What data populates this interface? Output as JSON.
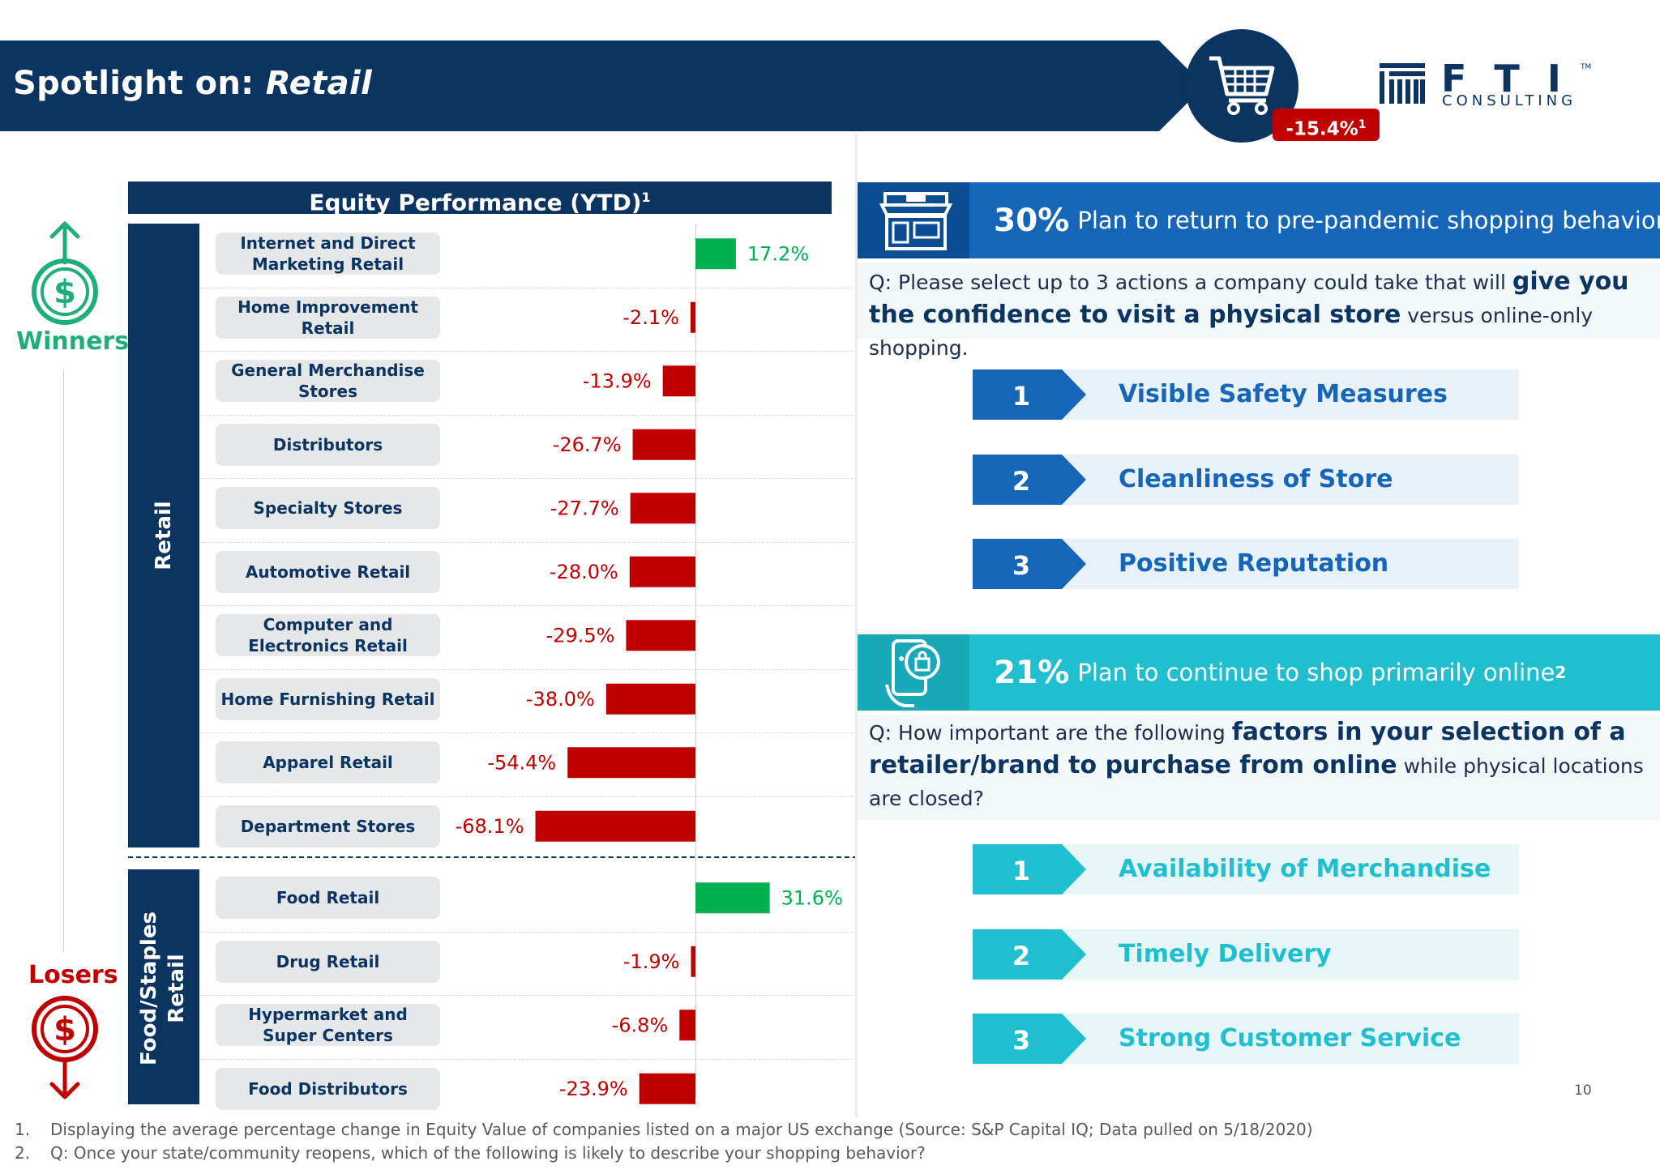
{
  "header": {
    "title_prefix": "Spotlight on: ",
    "title_emph": "Retail",
    "retail_badge": "-15.4%",
    "retail_badge_note": "1"
  },
  "logo": {
    "letters": "FTI",
    "sub": "CONSULTING",
    "tm": "TM"
  },
  "side": {
    "winners": "Winners",
    "losers": "Losers"
  },
  "chart_data": {
    "type": "bar",
    "orientation": "horizontal",
    "title": "Equity Performance (YTD)",
    "title_note": "1",
    "groups": [
      {
        "name": "Retail",
        "categories": [
          "Internet and Direct Marketing Retail",
          "Home Improvement Retail",
          "General Merchandise Stores",
          "Distributors",
          "Specialty Stores",
          "Automotive Retail",
          "Computer and Electronics Retail",
          "Home Furnishing Retail",
          "Apparel Retail",
          "Department Stores"
        ],
        "values": [
          17.2,
          -2.1,
          -13.9,
          -26.7,
          -27.7,
          -28.0,
          -29.5,
          -38.0,
          -54.4,
          -68.1
        ],
        "labels": [
          "17.2%",
          "-2.1%",
          "-13.9%",
          "-26.7%",
          "-27.7%",
          "-28.0%",
          "-29.5%",
          "-38.0%",
          "-54.4%",
          "-68.1%"
        ]
      },
      {
        "name": "Food/Staples Retail",
        "categories": [
          "Food Retail",
          "Drug Retail",
          "Hypermarket and Super Centers",
          "Food Distributors"
        ],
        "values": [
          31.6,
          -1.9,
          -6.8,
          -23.9
        ],
        "labels": [
          "31.6%",
          "-1.9%",
          "-6.8%",
          "-23.9%"
        ]
      }
    ],
    "positive_color": "#00b050",
    "negative_color": "#c00000"
  },
  "panel1": {
    "pct": "30%",
    "text": "Plan to return to pre-pandemic shopping behavior",
    "note": "2",
    "q_pre": "Q: Please select up to 3 actions a company could take that will ",
    "q_bold": "give you the confidence to visit a physical store",
    "q_post": " versus online-only shopping.",
    "items": [
      {
        "num": "1",
        "label": "Visible Safety Measures"
      },
      {
        "num": "2",
        "label": "Cleanliness of Store"
      },
      {
        "num": "3",
        "label": "Positive Reputation"
      }
    ],
    "color": "#1565b8"
  },
  "panel2": {
    "pct": "21%",
    "text": "Plan to continue to shop primarily online",
    "note": "2",
    "q_pre": "Q: How important are the following ",
    "q_bold": "factors in your selection of a retailer/brand to purchase from online",
    "q_post": " while physical locations are closed?",
    "items": [
      {
        "num": "1",
        "label": "Availability of Merchandise"
      },
      {
        "num": "2",
        "label": "Timely Delivery"
      },
      {
        "num": "3",
        "label": "Strong Customer Service"
      }
    ],
    "color": "#1fbfd0"
  },
  "page_number": "10",
  "footnotes": [
    {
      "num": "1.",
      "text": "Displaying the average percentage change in Equity Value of companies listed on a major US exchange (Source: S&P Capital IQ; Data pulled on 5/18/2020)"
    },
    {
      "num": "2.",
      "text": "Q: Once your state/community reopens, which of the following is likely to describe your shopping behavior?"
    }
  ]
}
